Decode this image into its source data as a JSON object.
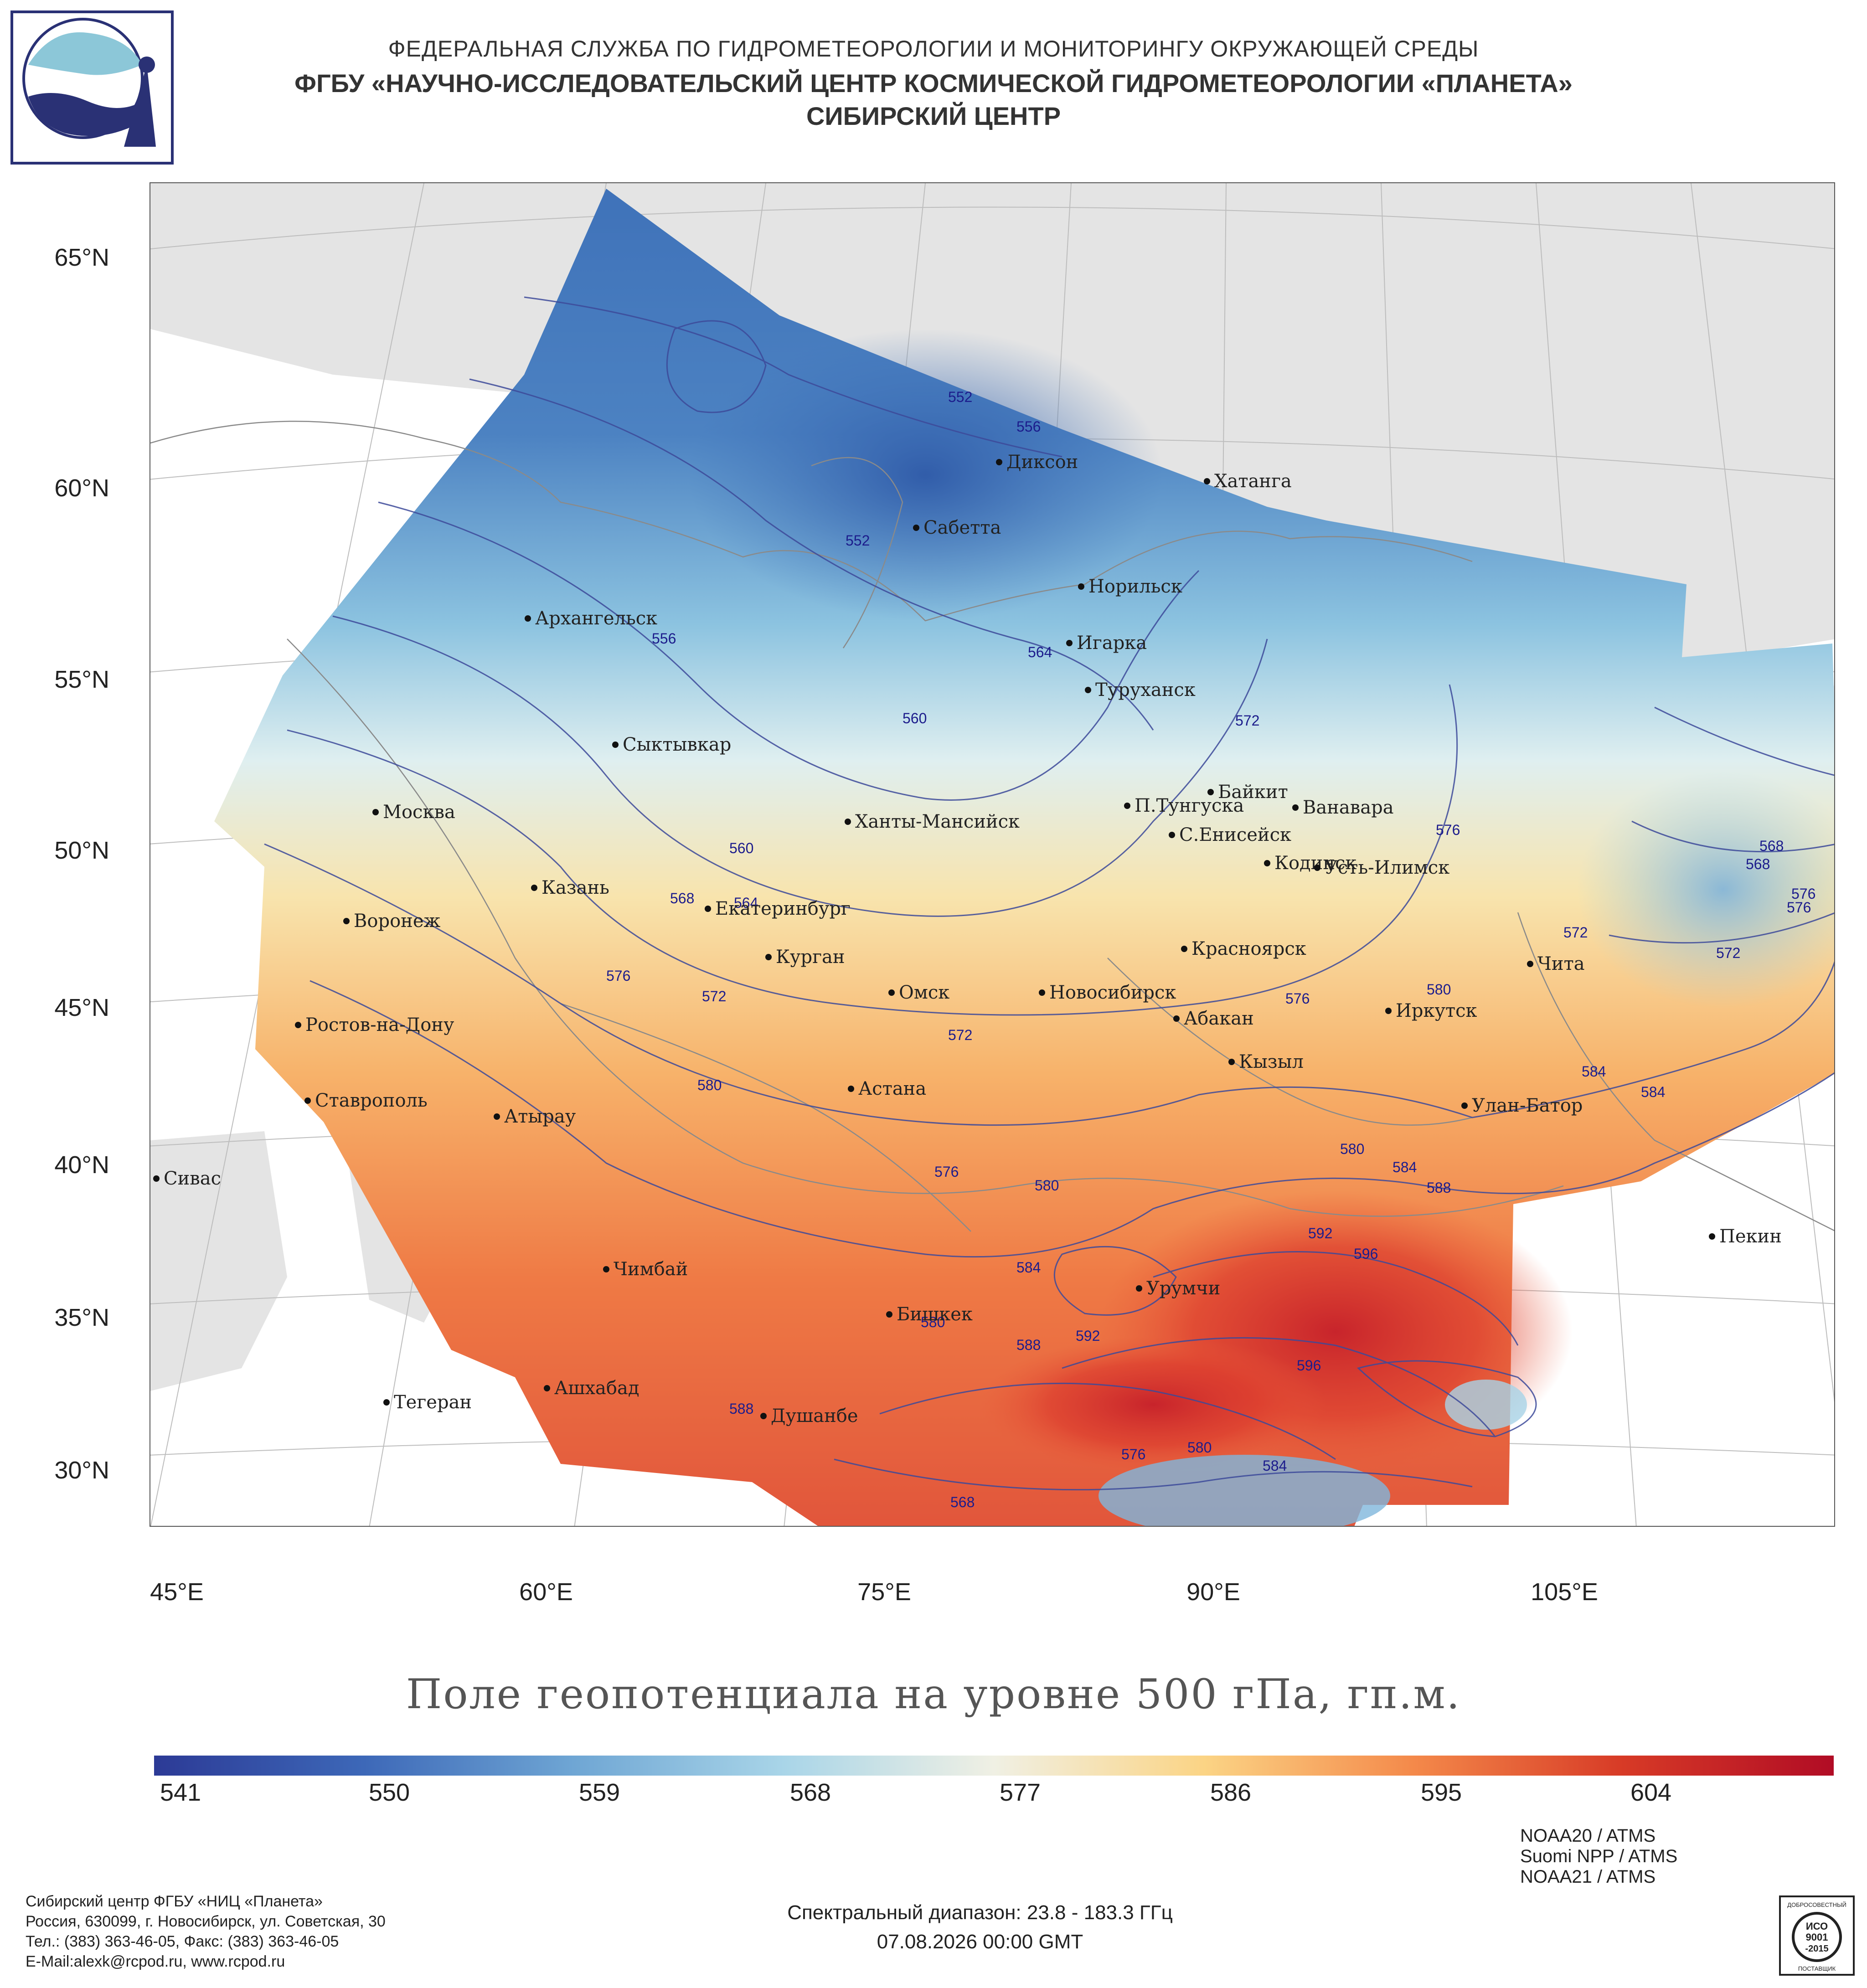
{
  "header": {
    "line1": "ФЕДЕРАЛЬНАЯ СЛУЖБА ПО ГИДРОМЕТЕОРОЛОГИИ И МОНИТОРИНГУ ОКРУЖАЮЩЕЙ СРЕДЫ",
    "line2": "ФГБУ «НАУЧНО-ИССЛЕДОВАТЕЛЬСКИЙ ЦЕНТР КОСМИЧЕСКОЙ ГИДРОМЕТЕОРОЛОГИИ «ПЛАНЕТА»",
    "line3": "СИБИРСКИЙ ЦЕНТР"
  },
  "map": {
    "lat_labels": [
      "65°N",
      "60°N",
      "55°N",
      "50°N",
      "45°N",
      "40°N",
      "35°N",
      "30°N"
    ],
    "lon_labels": [
      "45°E",
      "60°E",
      "75°E",
      "90°E",
      "105°E"
    ],
    "cities": [
      "Диксон",
      "Хатанга",
      "Сабетта",
      "Норильск",
      "Архангельск",
      "Игарка",
      "Туруханск",
      "Сыктывкар",
      "Байкит",
      "П.Тунгуска",
      "Ванавара",
      "Москва",
      "Ханты-Мансийск",
      "С.Енисейск",
      "Кодинск",
      "Усть-Илимск",
      "Казань",
      "Екатеринбург",
      "Воронеж",
      "Красноярск",
      "Курган",
      "Чита",
      "Омск",
      "Новосибирск",
      "Иркутск",
      "Абакан",
      "Ростов-на-Дону",
      "Кызыл",
      "Астана",
      "Ставрополь",
      "Улан-Батор",
      "Атырау",
      "Сивас",
      "Пекин",
      "Чимбай",
      "Урумчи",
      "Бишкек",
      "Ашхабад",
      "Тегеран",
      "Душанбе"
    ],
    "isolines": [
      "552",
      "556",
      "552",
      "556",
      "564",
      "560",
      "572",
      "576",
      "560",
      "568",
      "564",
      "576",
      "572",
      "568",
      "572",
      "576",
      "580",
      "572",
      "576",
      "580",
      "584",
      "580",
      "576",
      "580",
      "584",
      "588",
      "592",
      "596",
      "584",
      "580",
      "588",
      "592",
      "596",
      "576",
      "580",
      "584",
      "588",
      "568",
      "568",
      "572",
      "576",
      "584"
    ]
  },
  "map_title": "Поле геопотенциала на уровне 500 гПа, гп.м.",
  "colorbar": {
    "ticks": [
      "541",
      "550",
      "559",
      "568",
      "577",
      "586",
      "595",
      "604"
    ],
    "colors": [
      "#2c3a96",
      "#3d68b8",
      "#6fa6d4",
      "#a9d5e8",
      "#f0f0e4",
      "#fbd485",
      "#f4894a",
      "#d73a26",
      "#b10c25"
    ]
  },
  "footer": {
    "org_lines": [
      "Сибирский центр ФГБУ «НИЦ «Планета»",
      "Россия, 630099, г. Новосибирск, ул. Советская, 30",
      "Тел.: (383) 363-46-05, Факс: (383) 363-46-05",
      "E-Mail:alexk@rcpod.ru, www.rcpod.ru"
    ],
    "spectral": "Спектральный диапазон: 23.8 - 183.3 ГГц",
    "datetime": "07.08.2026 00:00 GMT",
    "satellites": [
      "NOAA20 / ATMS",
      "Suomi NPP / ATMS",
      "NOAA21 / ATMS"
    ],
    "iso_badge": [
      "ДОБРОСОВЕСТНЫЙ",
      "ИСО",
      "9001",
      "-2015",
      "ПОСТАВЩИК"
    ]
  }
}
